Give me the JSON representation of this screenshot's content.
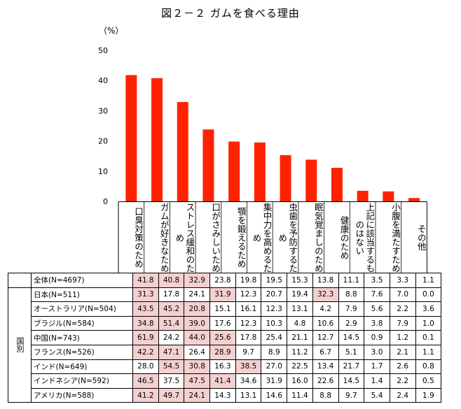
{
  "title": "図２－２ ガムを食べる理由",
  "unit": "（%）",
  "chart_data": {
    "type": "bar",
    "title": "図２－２ ガムを食べる理由",
    "ylabel": "（%）",
    "ylim": [
      0,
      50
    ],
    "yticks": [
      0,
      10,
      20,
      30,
      40,
      50
    ],
    "bar_color": "#ff2200",
    "categories": [
      "口臭対策のため",
      "ガムが好きなため",
      "ストレス緩和のため",
      "口がさみしいため",
      "顎を鍛えるため",
      "集中力を高めるため",
      "虫歯を予防するため",
      "眠気覚ましのため",
      "健康のため",
      "上記に該当するものはない",
      "小腹を満たすため",
      "その他"
    ],
    "values": [
      41.8,
      40.8,
      32.9,
      23.8,
      19.8,
      19.5,
      15.3,
      13.8,
      11.1,
      3.5,
      3.3,
      1.1
    ]
  },
  "table": {
    "group_label": "国別",
    "highlight_color": "#f5d0d0",
    "rows": [
      {
        "label": "全体(N=4697)",
        "values": [
          "41.8",
          "40.8",
          "32.9",
          "23.8",
          "19.8",
          "19.5",
          "15.3",
          "13.8",
          "11.1",
          "3.5",
          "3.3",
          "1.1"
        ],
        "hl": [
          0,
          1,
          2
        ]
      },
      {
        "label": "日本(N=511)",
        "values": [
          "31.3",
          "17.8",
          "24.1",
          "31.9",
          "12.3",
          "20.7",
          "19.4",
          "32.3",
          "8.8",
          "7.6",
          "7.0",
          "0.0"
        ],
        "hl": [
          0,
          3,
          7
        ]
      },
      {
        "label": "オーストラリア(N=504)",
        "values": [
          "43.5",
          "45.2",
          "20.8",
          "15.1",
          "16.1",
          "12.3",
          "13.1",
          "4.2",
          "7.9",
          "5.6",
          "2.2",
          "3.6"
        ],
        "hl": [
          0,
          1,
          2
        ]
      },
      {
        "label": "ブラジル(N=584)",
        "values": [
          "34.8",
          "51.4",
          "39.0",
          "17.6",
          "12.3",
          "10.3",
          "4.8",
          "10.6",
          "2.9",
          "3.8",
          "7.9",
          "1.0"
        ],
        "hl": [
          0,
          1,
          2
        ]
      },
      {
        "label": "中国(N=743)",
        "values": [
          "61.9",
          "24.2",
          "44.0",
          "25.6",
          "17.8",
          "25.4",
          "21.1",
          "12.7",
          "14.5",
          "0.9",
          "1.2",
          "0.1"
        ],
        "hl": [
          0,
          2,
          3
        ]
      },
      {
        "label": "フランス(N=526)",
        "values": [
          "42.2",
          "47.1",
          "26.4",
          "28.9",
          "9.7",
          "8.9",
          "11.2",
          "6.7",
          "5.1",
          "3.0",
          "2.1",
          "1.1"
        ],
        "hl": [
          0,
          1,
          3
        ]
      },
      {
        "label": "インド(N=649)",
        "values": [
          "28.0",
          "54.5",
          "30.8",
          "16.3",
          "38.5",
          "27.0",
          "22.5",
          "13.4",
          "21.7",
          "1.7",
          "2.6",
          "0.8"
        ],
        "hl": [
          1,
          2,
          4
        ]
      },
      {
        "label": "インドネシア(N=592)",
        "values": [
          "46.5",
          "37.5",
          "47.5",
          "41.4",
          "34.6",
          "31.9",
          "16.0",
          "22.6",
          "14.5",
          "1.4",
          "2.2",
          "0.5"
        ],
        "hl": [
          0,
          2,
          3
        ]
      },
      {
        "label": "アメリカ(N=588)",
        "values": [
          "41.2",
          "49.7",
          "24.1",
          "14.3",
          "13.1",
          "14.6",
          "11.4",
          "8.8",
          "9.7",
          "5.4",
          "2.4",
          "1.9"
        ],
        "hl": [
          0,
          1,
          2
        ]
      }
    ]
  }
}
